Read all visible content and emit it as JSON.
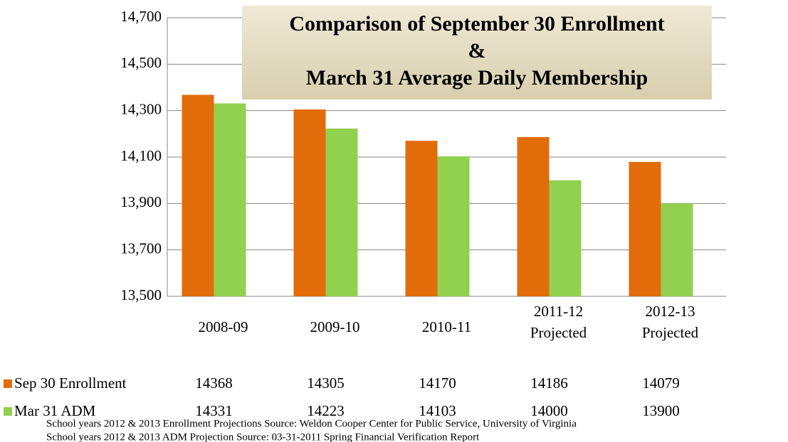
{
  "chart_data": {
    "type": "bar",
    "title": "Comparison of September 30 Enrollment\n&\nMarch 31 Average Daily Membership",
    "categories": [
      "2008-09",
      "2009-10",
      "2010-11",
      "2011-12\nProjected",
      "2012-13\nProjected"
    ],
    "series": [
      {
        "name": "Sep 30 Enrollment",
        "color": "#e36c0a",
        "values": [
          14368,
          14305,
          14170,
          14186,
          14079
        ]
      },
      {
        "name": "Mar 31 ADM",
        "color": "#92d050",
        "values": [
          14331,
          14223,
          14103,
          14000,
          13900
        ]
      }
    ],
    "ylim": [
      13500,
      14700
    ],
    "yticks": [
      {
        "value": 13500,
        "label": "13,500"
      },
      {
        "value": 13700,
        "label": "13,700"
      },
      {
        "value": 13900,
        "label": "13,900"
      },
      {
        "value": 14100,
        "label": "14,100"
      },
      {
        "value": 14300,
        "label": "14,300"
      },
      {
        "value": 14500,
        "label": "14,500"
      },
      {
        "value": 14700,
        "label": "14,700"
      }
    ],
    "grid": true,
    "notes": [
      "School years 2012 & 2013 Enrollment Projections Source: Weldon Cooper Center for Public Service, University of Virginia",
      "School years 2012 & 2013 ADM Projection Source: 03-31-2011 Spring Financial Verification Report"
    ]
  }
}
